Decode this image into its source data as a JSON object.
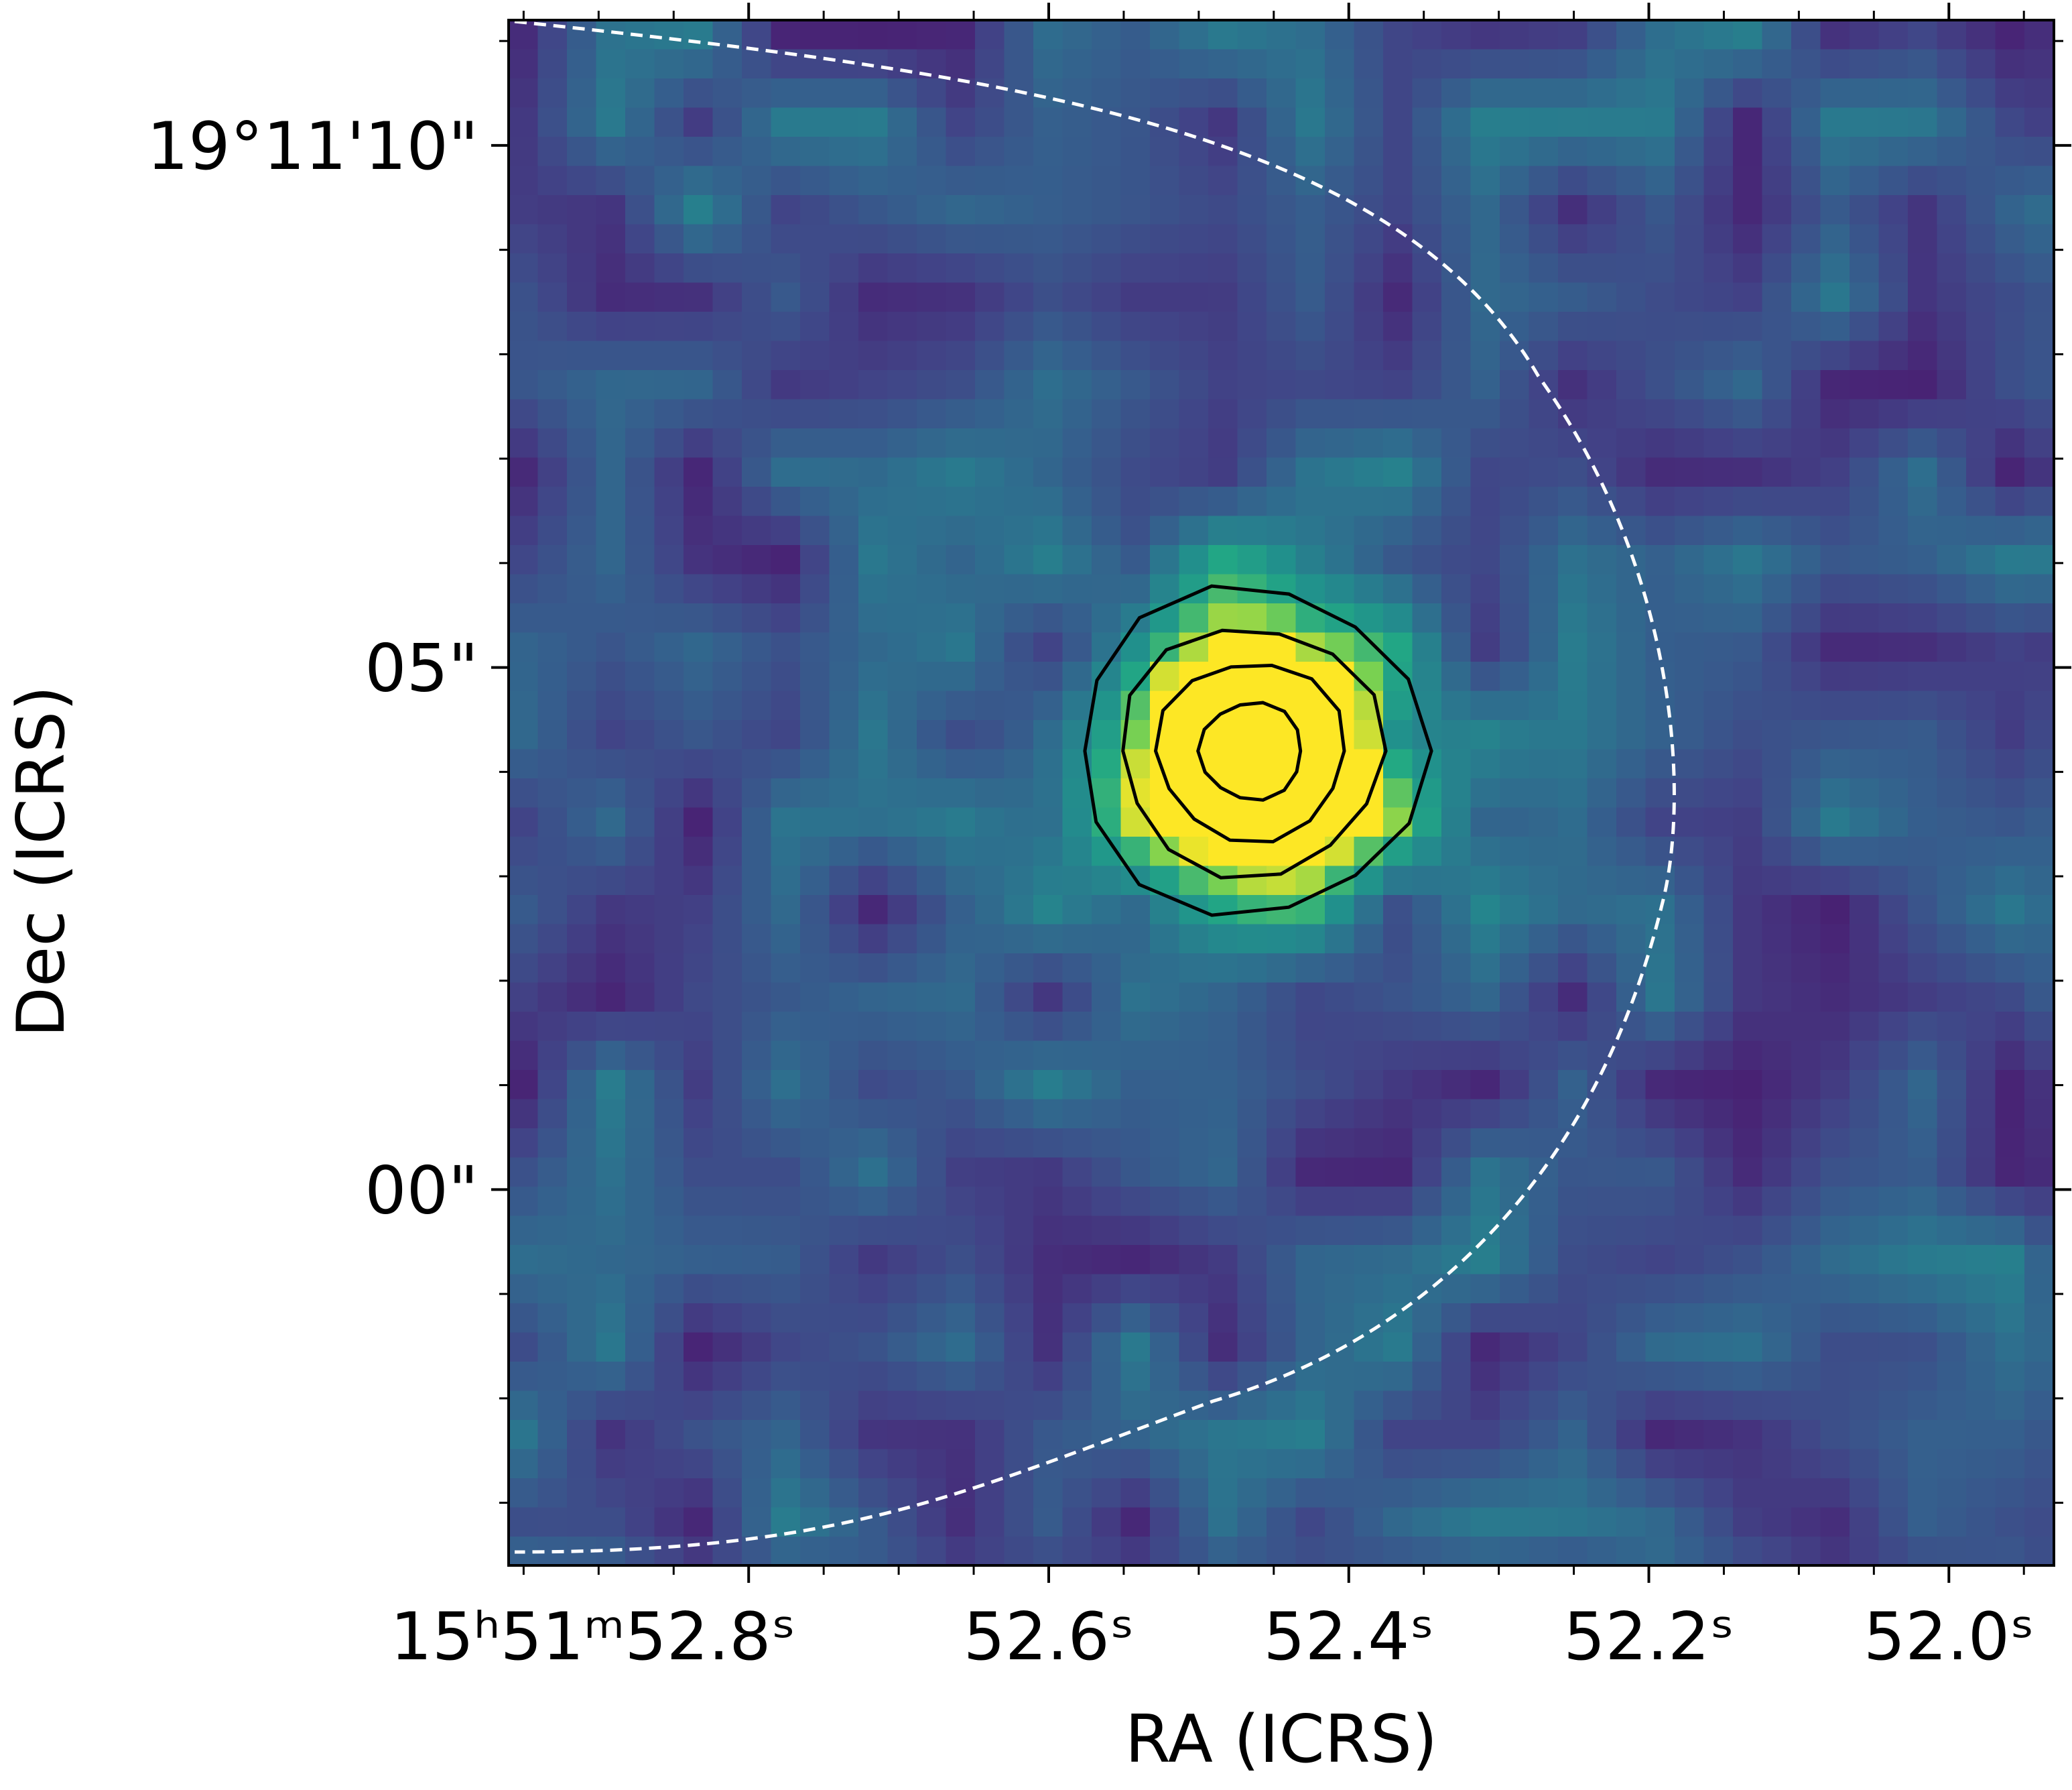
{
  "chart_data": {
    "type": "heatmap",
    "title": "",
    "xlabel": "RA (ICRS)",
    "ylabel": "Dec (ICRS)",
    "colormap": "viridis",
    "x_axis": {
      "coordinate": "right ascension",
      "direction": "decreasing to the right",
      "range_seconds": [
        52.96,
        51.93
      ],
      "ticks": [
        {
          "value": 52.8,
          "label": "15ʰ51ᵐ52.8ˢ"
        },
        {
          "value": 52.6,
          "label": "52.6ˢ"
        },
        {
          "value": 52.4,
          "label": "52.4ˢ"
        },
        {
          "value": 52.2,
          "label": "52.2ˢ"
        },
        {
          "value": 52.0,
          "label": "52.0ˢ"
        }
      ]
    },
    "y_axis": {
      "coordinate": "declination",
      "range_arcsec_offset_from_19d11m": [
        -3.6,
        11.2
      ],
      "ticks": [
        {
          "value": 10,
          "label": "19°11'10\""
        },
        {
          "value": 5,
          "label": "05\""
        },
        {
          "value": 0,
          "label": "00\""
        }
      ]
    },
    "source": {
      "peak_ra_seconds": 52.465,
      "peak_dec_arcsec": 4.2,
      "fwhm_arcsec": 2.4,
      "peak_level": 1.0
    },
    "contours": {
      "color": "#000000",
      "levels": [
        0.3,
        0.5,
        0.7,
        0.9
      ]
    },
    "dashed_boundary": {
      "color": "#ffffff",
      "style": "dashed",
      "shape": "arc opening to the left"
    }
  }
}
